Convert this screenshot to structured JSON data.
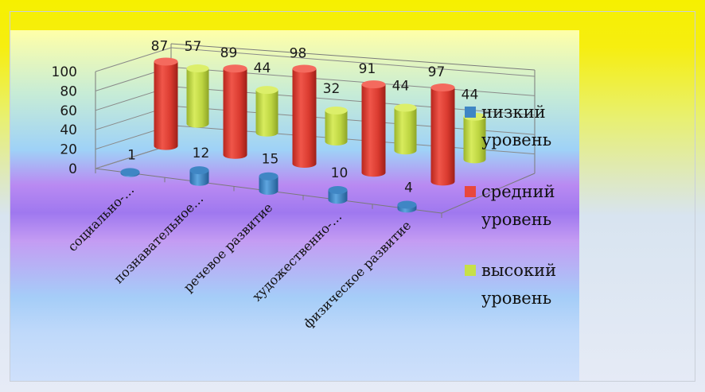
{
  "chart_data": {
    "type": "bar",
    "subtype": "3d-cylinder",
    "categories": [
      "социально-…",
      "познавательное…",
      "речевое развитие",
      "художественно-…",
      "физическое развитие"
    ],
    "series": [
      {
        "name": "низкий уровень",
        "values": [
          1,
          12,
          15,
          10,
          4
        ]
      },
      {
        "name": "средний уровень",
        "values": [
          87,
          89,
          98,
          91,
          97
        ]
      },
      {
        "name": "высокий уровень",
        "values": [
          57,
          44,
          32,
          44,
          44
        ]
      }
    ],
    "yticks": [
      "0",
      "20",
      "40",
      "60",
      "80",
      "100"
    ],
    "ylim": [
      0,
      100
    ],
    "legend_position": "right",
    "colors": {
      "low": "#3f86c4",
      "mid": "#e8483c",
      "high": "#c7e048"
    }
  }
}
